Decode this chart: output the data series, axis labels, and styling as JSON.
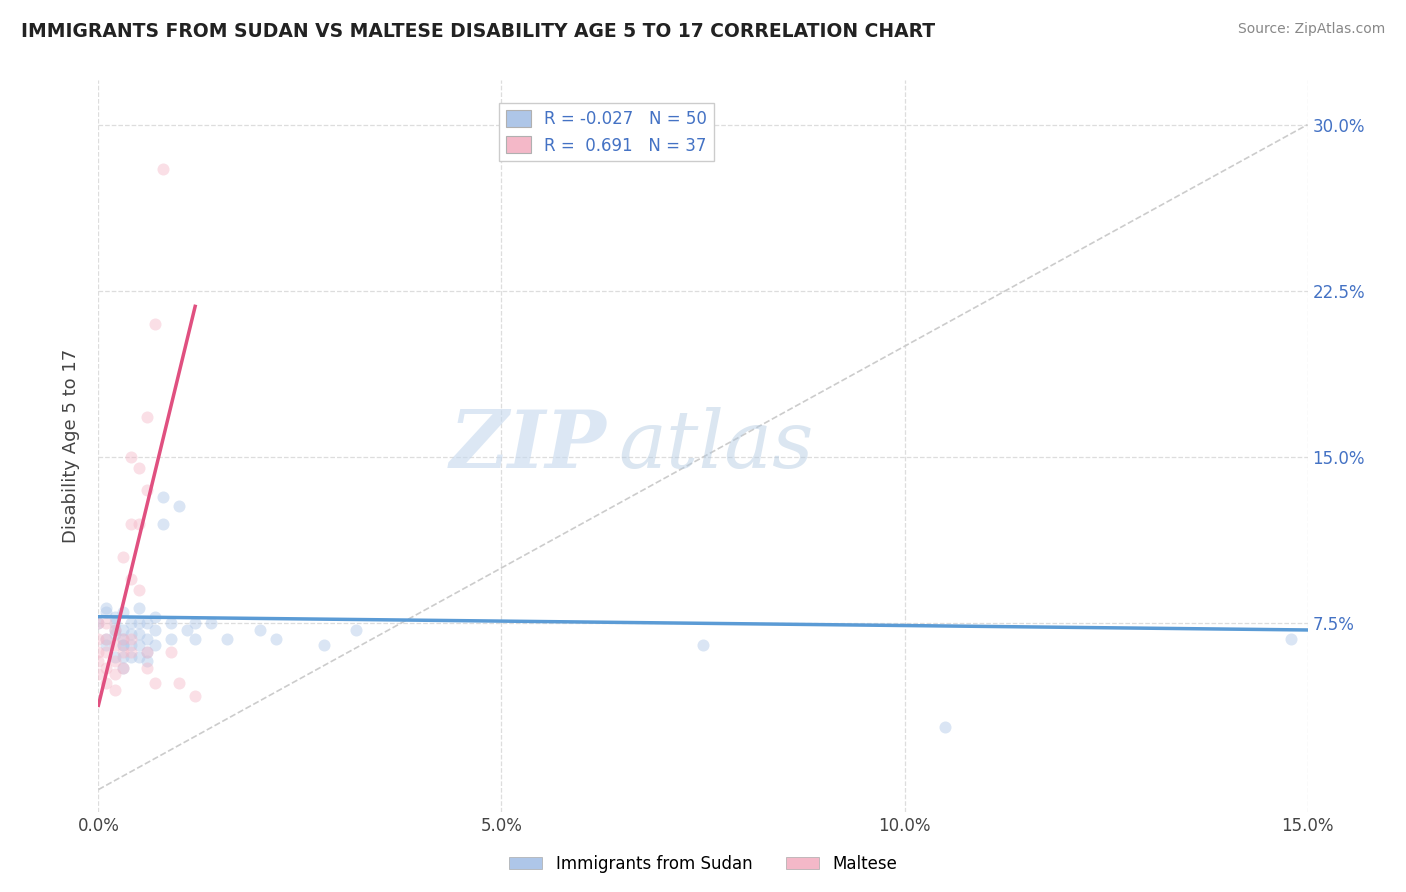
{
  "title": "IMMIGRANTS FROM SUDAN VS MALTESE DISABILITY AGE 5 TO 17 CORRELATION CHART",
  "source": "Source: ZipAtlas.com",
  "ylabel_label": "Disability Age 5 to 17",
  "xlim": [
    0.0,
    0.15
  ],
  "ylim": [
    -0.01,
    0.32
  ],
  "xticks": [
    0.0,
    0.05,
    0.1,
    0.15
  ],
  "xticklabels": [
    "0.0%",
    "5.0%",
    "10.0%",
    "15.0%"
  ],
  "yticks": [
    0.075,
    0.15,
    0.225,
    0.3
  ],
  "yticklabels": [
    "7.5%",
    "15.0%",
    "22.5%",
    "30.0%"
  ],
  "grid_yticks": [
    0.075,
    0.15,
    0.225,
    0.3
  ],
  "grid_xticks": [
    0.0,
    0.05,
    0.1,
    0.15
  ],
  "grid_color": "#dddddd",
  "watermark_zip": "ZIP",
  "watermark_atlas": "atlas",
  "legend_entries": [
    {
      "label": "Immigrants from Sudan",
      "R": "-0.027",
      "N": "50",
      "color": "#aec6e8"
    },
    {
      "label": "Maltese",
      "R": "0.691",
      "N": "37",
      "color": "#f4b8c8"
    }
  ],
  "sudan_scatter": [
    [
      0.001,
      0.082
    ],
    [
      0.0,
      0.075
    ],
    [
      0.001,
      0.08
    ],
    [
      0.001,
      0.068
    ],
    [
      0.002,
      0.072
    ],
    [
      0.001,
      0.065
    ],
    [
      0.002,
      0.078
    ],
    [
      0.002,
      0.07
    ],
    [
      0.003,
      0.065
    ],
    [
      0.002,
      0.06
    ],
    [
      0.002,
      0.075
    ],
    [
      0.003,
      0.08
    ],
    [
      0.003,
      0.072
    ],
    [
      0.003,
      0.068
    ],
    [
      0.003,
      0.065
    ],
    [
      0.003,
      0.06
    ],
    [
      0.003,
      0.055
    ],
    [
      0.004,
      0.075
    ],
    [
      0.004,
      0.07
    ],
    [
      0.004,
      0.065
    ],
    [
      0.004,
      0.06
    ],
    [
      0.005,
      0.082
    ],
    [
      0.005,
      0.075
    ],
    [
      0.005,
      0.07
    ],
    [
      0.005,
      0.065
    ],
    [
      0.005,
      0.06
    ],
    [
      0.006,
      0.075
    ],
    [
      0.006,
      0.068
    ],
    [
      0.006,
      0.062
    ],
    [
      0.006,
      0.058
    ],
    [
      0.007,
      0.078
    ],
    [
      0.007,
      0.072
    ],
    [
      0.007,
      0.065
    ],
    [
      0.008,
      0.132
    ],
    [
      0.008,
      0.12
    ],
    [
      0.009,
      0.075
    ],
    [
      0.009,
      0.068
    ],
    [
      0.01,
      0.128
    ],
    [
      0.011,
      0.072
    ],
    [
      0.012,
      0.075
    ],
    [
      0.012,
      0.068
    ],
    [
      0.014,
      0.075
    ],
    [
      0.016,
      0.068
    ],
    [
      0.02,
      0.072
    ],
    [
      0.022,
      0.068
    ],
    [
      0.028,
      0.065
    ],
    [
      0.032,
      0.072
    ],
    [
      0.075,
      0.065
    ],
    [
      0.105,
      0.028
    ],
    [
      0.148,
      0.068
    ]
  ],
  "maltese_scatter": [
    [
      0.0,
      0.075
    ],
    [
      0.0,
      0.068
    ],
    [
      0.0,
      0.062
    ],
    [
      0.0,
      0.058
    ],
    [
      0.0,
      0.052
    ],
    [
      0.001,
      0.075
    ],
    [
      0.001,
      0.068
    ],
    [
      0.001,
      0.062
    ],
    [
      0.001,
      0.055
    ],
    [
      0.001,
      0.048
    ],
    [
      0.002,
      0.072
    ],
    [
      0.002,
      0.065
    ],
    [
      0.002,
      0.058
    ],
    [
      0.002,
      0.052
    ],
    [
      0.002,
      0.045
    ],
    [
      0.003,
      0.105
    ],
    [
      0.003,
      0.068
    ],
    [
      0.003,
      0.062
    ],
    [
      0.003,
      0.055
    ],
    [
      0.004,
      0.15
    ],
    [
      0.004,
      0.12
    ],
    [
      0.004,
      0.095
    ],
    [
      0.004,
      0.068
    ],
    [
      0.004,
      0.062
    ],
    [
      0.005,
      0.145
    ],
    [
      0.005,
      0.12
    ],
    [
      0.005,
      0.09
    ],
    [
      0.006,
      0.168
    ],
    [
      0.006,
      0.135
    ],
    [
      0.006,
      0.062
    ],
    [
      0.006,
      0.055
    ],
    [
      0.007,
      0.21
    ],
    [
      0.007,
      0.048
    ],
    [
      0.008,
      0.28
    ],
    [
      0.009,
      0.062
    ],
    [
      0.01,
      0.048
    ],
    [
      0.012,
      0.042
    ]
  ],
  "sudan_line": {
    "x": [
      0.0,
      0.15
    ],
    "y": [
      0.078,
      0.072
    ]
  },
  "maltese_line": {
    "x": [
      0.0,
      0.012
    ],
    "y": [
      0.038,
      0.218
    ]
  },
  "diagonal_line": {
    "x": [
      0.0,
      0.15
    ],
    "y": [
      0.0,
      0.3
    ]
  },
  "title_color": "#222222",
  "scatter_size": 75,
  "scatter_alpha": 0.45,
  "sudan_color": "#aec6e8",
  "maltese_color": "#f4b8c8",
  "line_sudan_color": "#5b9bd5",
  "line_maltese_color": "#e05080",
  "diagonal_color": "#cccccc",
  "legend_label1": "R = -0.027   N = 50",
  "legend_label2": "R =  0.691   N = 37",
  "bottom_label1": "Immigrants from Sudan",
  "bottom_label2": "Maltese"
}
